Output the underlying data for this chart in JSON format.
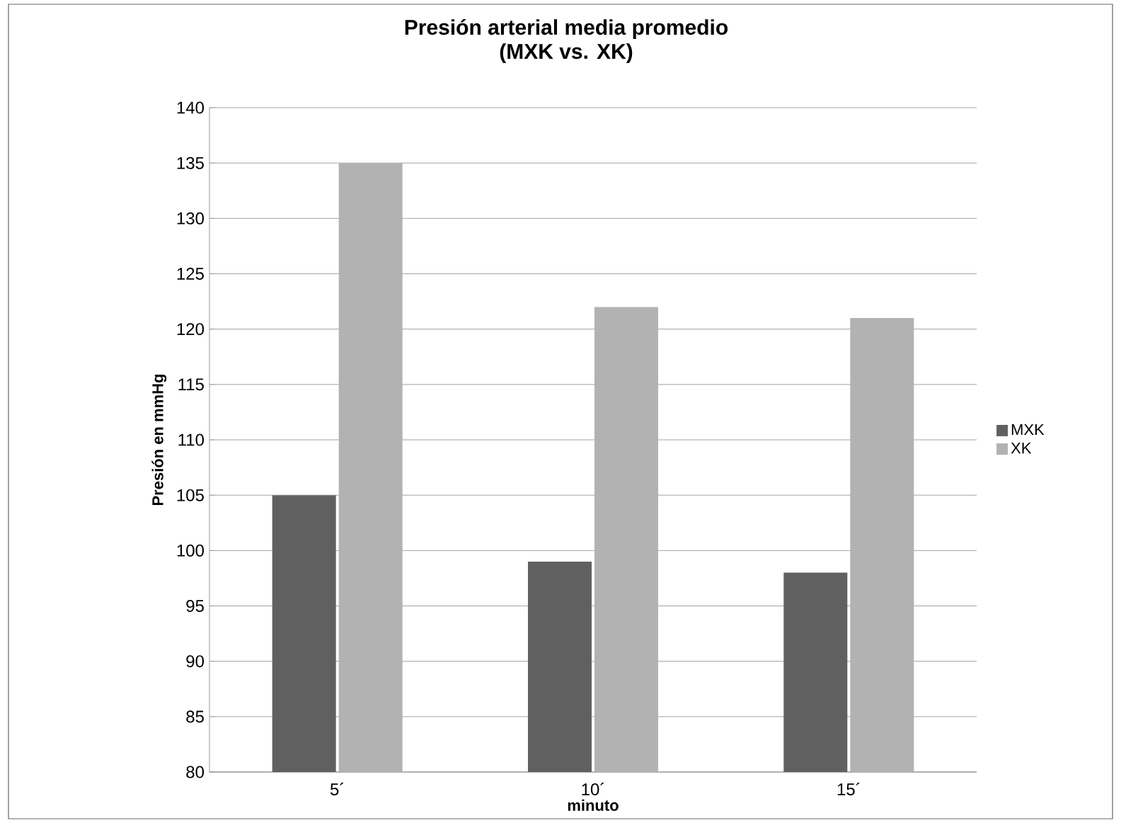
{
  "chart_data": {
    "type": "bar",
    "title": "Presión arterial media  promedio",
    "subtitle": "(MXK vs. XK)",
    "xlabel": "minuto",
    "ylabel": "Presión  en mmHg",
    "categories": [
      "5´",
      "10´",
      "15´"
    ],
    "series": [
      {
        "name": "MXK",
        "color": "#606060",
        "values": [
          105,
          99,
          98
        ]
      },
      {
        "name": "XK",
        "color": "#b2b2b2",
        "values": [
          135,
          122,
          121
        ]
      }
    ],
    "ylim": [
      80,
      140
    ],
    "yticks": [
      80,
      85,
      90,
      95,
      100,
      105,
      110,
      115,
      120,
      125,
      130,
      135,
      140
    ],
    "grid": "y",
    "legend": "right"
  }
}
